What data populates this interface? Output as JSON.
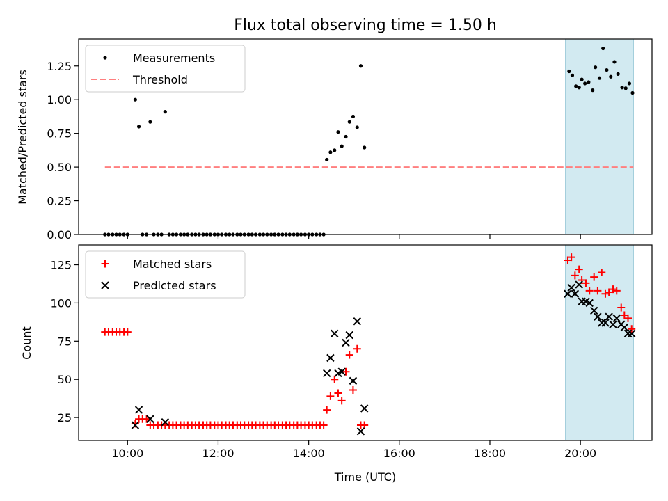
{
  "chart_data": [
    {
      "type": "scatter",
      "panel": "top",
      "title": "Flux total observing time = 1.50 h",
      "xlabel": "",
      "ylabel": "Matched/Predicted stars",
      "xlim": [
        8.92,
        21.58
      ],
      "ylim": [
        0,
        1.45
      ],
      "yticks": [
        0.0,
        0.25,
        0.5,
        0.75,
        1.0,
        1.25
      ],
      "ytick_labels": [
        "0.00",
        "0.25",
        "0.50",
        "0.75",
        "1.00",
        "1.25"
      ],
      "xticks": [
        10,
        12,
        14,
        16,
        18,
        20
      ],
      "legend": {
        "placement": "upper-left",
        "entries": [
          "Measurements",
          "Threshold"
        ]
      },
      "shaded_range": [
        19.67,
        21.17
      ],
      "threshold": {
        "name": "Threshold",
        "y": 0.5,
        "x": [
          9.5,
          21.17
        ],
        "color": "#ff7f7f"
      },
      "series": [
        {
          "name": "Measurements",
          "color": "#000000",
          "points": [
            [
              9.5,
              0
            ],
            [
              9.58,
              0
            ],
            [
              9.67,
              0
            ],
            [
              9.75,
              0
            ],
            [
              9.83,
              0
            ],
            [
              9.92,
              0
            ],
            [
              10.0,
              0
            ],
            [
              10.17,
              1.0
            ],
            [
              10.25,
              0.8
            ],
            [
              10.33,
              0
            ],
            [
              10.42,
              0
            ],
            [
              10.5,
              0.835
            ],
            [
              10.58,
              0
            ],
            [
              10.67,
              0
            ],
            [
              10.75,
              0
            ],
            [
              10.83,
              0.91
            ],
            [
              10.92,
              0
            ],
            [
              11.0,
              0
            ],
            [
              11.08,
              0
            ],
            [
              11.17,
              0
            ],
            [
              11.25,
              0
            ],
            [
              11.33,
              0
            ],
            [
              11.42,
              0
            ],
            [
              11.5,
              0
            ],
            [
              11.58,
              0
            ],
            [
              11.67,
              0
            ],
            [
              11.75,
              0
            ],
            [
              11.83,
              0
            ],
            [
              11.92,
              0
            ],
            [
              12.0,
              0
            ],
            [
              12.08,
              0
            ],
            [
              12.17,
              0
            ],
            [
              12.25,
              0
            ],
            [
              12.33,
              0
            ],
            [
              12.42,
              0
            ],
            [
              12.5,
              0
            ],
            [
              12.58,
              0
            ],
            [
              12.67,
              0
            ],
            [
              12.75,
              0
            ],
            [
              12.83,
              0
            ],
            [
              12.92,
              0
            ],
            [
              13.0,
              0
            ],
            [
              13.08,
              0
            ],
            [
              13.17,
              0
            ],
            [
              13.25,
              0
            ],
            [
              13.33,
              0
            ],
            [
              13.42,
              0
            ],
            [
              13.5,
              0
            ],
            [
              13.58,
              0
            ],
            [
              13.67,
              0
            ],
            [
              13.75,
              0
            ],
            [
              13.83,
              0
            ],
            [
              13.92,
              0
            ],
            [
              14.0,
              0
            ],
            [
              14.08,
              0
            ],
            [
              14.17,
              0
            ],
            [
              14.25,
              0
            ],
            [
              14.33,
              0
            ],
            [
              14.4,
              0.555
            ],
            [
              14.48,
              0.61
            ],
            [
              14.57,
              0.625
            ],
            [
              14.65,
              0.76
            ],
            [
              14.73,
              0.655
            ],
            [
              14.82,
              0.725
            ],
            [
              14.9,
              0.835
            ],
            [
              14.98,
              0.875
            ],
            [
              15.07,
              0.795
            ],
            [
              15.15,
              1.25
            ],
            [
              15.23,
              0.645
            ],
            [
              19.75,
              1.21
            ],
            [
              19.82,
              1.18
            ],
            [
              19.9,
              1.1
            ],
            [
              19.97,
              1.09
            ],
            [
              20.03,
              1.15
            ],
            [
              20.1,
              1.12
            ],
            [
              20.18,
              1.13
            ],
            [
              20.27,
              1.07
            ],
            [
              20.33,
              1.24
            ],
            [
              20.42,
              1.16
            ],
            [
              20.5,
              1.38
            ],
            [
              20.58,
              1.22
            ],
            [
              20.67,
              1.17
            ],
            [
              20.75,
              1.28
            ],
            [
              20.83,
              1.19
            ],
            [
              20.92,
              1.09
            ],
            [
              21.0,
              1.085
            ],
            [
              21.08,
              1.12
            ],
            [
              21.15,
              1.05
            ]
          ]
        }
      ]
    },
    {
      "type": "scatter",
      "panel": "bottom",
      "title": "",
      "xlabel": "Time (UTC)",
      "ylabel": "Count",
      "xlim": [
        8.92,
        21.58
      ],
      "ylim": [
        10,
        138
      ],
      "yticks": [
        25,
        50,
        75,
        100,
        125
      ],
      "ytick_labels": [
        "25",
        "50",
        "75",
        "100",
        "125"
      ],
      "xticks": [
        10,
        12,
        14,
        16,
        18,
        20
      ],
      "xtick_labels": [
        "10:00",
        "12:00",
        "14:00",
        "16:00",
        "18:00",
        "20:00"
      ],
      "legend": {
        "placement": "upper-left",
        "entries": [
          "Matched stars",
          "Predicted stars"
        ]
      },
      "shaded_range": [
        19.67,
        21.17
      ],
      "series": [
        {
          "name": "Matched stars",
          "marker": "plus",
          "color": "#ff0000",
          "points": [
            [
              9.5,
              81
            ],
            [
              9.58,
              81
            ],
            [
              9.67,
              81
            ],
            [
              9.75,
              81
            ],
            [
              9.83,
              81
            ],
            [
              9.92,
              81
            ],
            [
              10.0,
              81
            ],
            [
              10.17,
              21
            ],
            [
              10.25,
              24
            ],
            [
              10.33,
              24
            ],
            [
              10.42,
              24
            ],
            [
              10.5,
              20
            ],
            [
              10.58,
              20
            ],
            [
              10.67,
              20
            ],
            [
              10.75,
              20
            ],
            [
              10.83,
              20
            ],
            [
              10.92,
              20
            ],
            [
              11.0,
              20
            ],
            [
              11.08,
              20
            ],
            [
              11.17,
              20
            ],
            [
              11.25,
              20
            ],
            [
              11.33,
              20
            ],
            [
              11.42,
              20
            ],
            [
              11.5,
              20
            ],
            [
              11.58,
              20
            ],
            [
              11.67,
              20
            ],
            [
              11.75,
              20
            ],
            [
              11.83,
              20
            ],
            [
              11.92,
              20
            ],
            [
              12.0,
              20
            ],
            [
              12.08,
              20
            ],
            [
              12.17,
              20
            ],
            [
              12.25,
              20
            ],
            [
              12.33,
              20
            ],
            [
              12.42,
              20
            ],
            [
              12.5,
              20
            ],
            [
              12.58,
              20
            ],
            [
              12.67,
              20
            ],
            [
              12.75,
              20
            ],
            [
              12.83,
              20
            ],
            [
              12.92,
              20
            ],
            [
              13.0,
              20
            ],
            [
              13.08,
              20
            ],
            [
              13.17,
              20
            ],
            [
              13.25,
              20
            ],
            [
              13.33,
              20
            ],
            [
              13.42,
              20
            ],
            [
              13.5,
              20
            ],
            [
              13.58,
              20
            ],
            [
              13.67,
              20
            ],
            [
              13.75,
              20
            ],
            [
              13.83,
              20
            ],
            [
              13.92,
              20
            ],
            [
              14.0,
              20
            ],
            [
              14.08,
              20
            ],
            [
              14.17,
              20
            ],
            [
              14.25,
              20
            ],
            [
              14.33,
              20
            ],
            [
              14.4,
              30
            ],
            [
              14.48,
              39
            ],
            [
              14.57,
              50
            ],
            [
              14.65,
              41
            ],
            [
              14.73,
              36
            ],
            [
              14.82,
              55
            ],
            [
              14.9,
              66
            ],
            [
              14.98,
              43
            ],
            [
              15.07,
              70
            ],
            [
              15.15,
              20
            ],
            [
              15.23,
              20
            ],
            [
              19.72,
              128
            ],
            [
              19.8,
              130
            ],
            [
              19.88,
              118
            ],
            [
              19.97,
              122
            ],
            [
              20.03,
              115
            ],
            [
              20.12,
              113
            ],
            [
              20.2,
              108
            ],
            [
              20.3,
              117
            ],
            [
              20.38,
              108
            ],
            [
              20.47,
              120
            ],
            [
              20.55,
              106
            ],
            [
              20.63,
              107
            ],
            [
              20.72,
              109
            ],
            [
              20.8,
              108
            ],
            [
              20.9,
              97
            ],
            [
              20.97,
              92
            ],
            [
              21.05,
              90
            ],
            [
              21.13,
              83
            ]
          ]
        },
        {
          "name": "Predicted stars",
          "marker": "x",
          "color": "#000000",
          "points": [
            [
              10.17,
              20
            ],
            [
              10.25,
              30
            ],
            [
              10.5,
              24
            ],
            [
              10.83,
              22
            ],
            [
              14.4,
              54
            ],
            [
              14.48,
              64
            ],
            [
              14.57,
              80
            ],
            [
              14.65,
              54
            ],
            [
              14.73,
              55
            ],
            [
              14.82,
              74
            ],
            [
              14.9,
              79
            ],
            [
              14.98,
              49
            ],
            [
              15.07,
              88
            ],
            [
              15.15,
              16
            ],
            [
              15.23,
              31
            ],
            [
              19.72,
              106
            ],
            [
              19.8,
              110
            ],
            [
              19.88,
              106
            ],
            [
              19.97,
              112
            ],
            [
              20.03,
              101
            ],
            [
              20.12,
              101
            ],
            [
              20.2,
              100
            ],
            [
              20.3,
              95
            ],
            [
              20.38,
              91
            ],
            [
              20.47,
              87
            ],
            [
              20.55,
              87
            ],
            [
              20.63,
              91
            ],
            [
              20.72,
              86
            ],
            [
              20.8,
              90
            ],
            [
              20.9,
              86
            ],
            [
              20.97,
              84
            ],
            [
              21.05,
              80
            ],
            [
              21.13,
              80
            ]
          ]
        }
      ]
    }
  ]
}
